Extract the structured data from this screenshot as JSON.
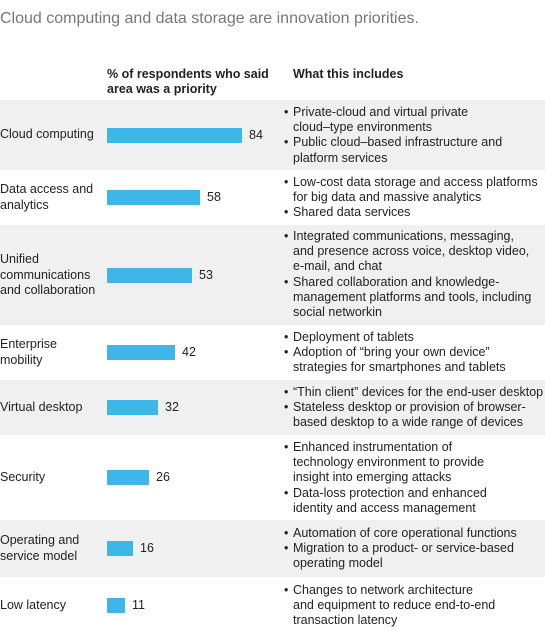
{
  "title": "Cloud computing and data storage are innovation priorities.",
  "headers": {
    "value": "% of respondents who said area was a priority",
    "includes": "What this includes"
  },
  "chart_data": {
    "type": "bar",
    "title": "Cloud computing and data storage are innovation priorities.",
    "ylabel": "% of respondents who said area was a priority",
    "categories": [
      "Cloud computing",
      "Data access and analytics",
      "Unified communications and collaboration",
      "Enterprise mobility",
      "Virtual desktop",
      "Security",
      "Operating and service model",
      "Low latency"
    ],
    "values": [
      84,
      58,
      53,
      42,
      32,
      26,
      16,
      11
    ],
    "orientation": "horizontal",
    "bar_color": "#3fb6e8",
    "ylim": [
      0,
      100
    ],
    "grid": false
  },
  "rows": [
    {
      "category_lines": [
        "Cloud computing"
      ],
      "value": "84",
      "includes": [
        [
          "Private-cloud and virtual private",
          "cloud–type environments"
        ],
        [
          "Public cloud–based infrastructure and",
          "platform services"
        ]
      ]
    },
    {
      "category_lines": [
        "Data access and",
        "analytics"
      ],
      "value": "58",
      "includes": [
        [
          "Low-cost data storage and access platforms",
          "for big data and massive analytics"
        ],
        [
          "Shared data services"
        ]
      ]
    },
    {
      "category_lines": [
        "Unified",
        "communications",
        "and collaboration"
      ],
      "value": "53",
      "includes": [
        [
          "Integrated communications, messaging,",
          "and presence across voice, desktop video,",
          "e-mail, and chat"
        ],
        [
          "Shared collaboration and knowledge-",
          "management platforms and tools, including",
          " social networkin"
        ]
      ]
    },
    {
      "category_lines": [
        "Enterprise",
        "mobility"
      ],
      "value": "42",
      "includes": [
        [
          "Deployment of tablets"
        ],
        [
          "Adoption of “bring your own device”",
          "strategies for smartphones and tablets"
        ]
      ]
    },
    {
      "category_lines": [
        "Virtual desktop"
      ],
      "value": "32",
      "includes": [
        [
          "“Thin client” devices for the end-user desktop"
        ],
        [
          "Stateless desktop or provision of browser-",
          "based desktop to a wide range of devices"
        ]
      ]
    },
    {
      "category_lines": [
        "Security"
      ],
      "value": "26",
      "includes": [
        [
          "Enhanced instrumentation of",
          "technology environment to provide",
          "insight into emerging attacks"
        ],
        [
          "Data-loss protection and enhanced",
          "identity and access management"
        ]
      ]
    },
    {
      "category_lines": [
        "Operating and",
        "service model"
      ],
      "value": "16",
      "includes": [
        [
          "Automation of core operational functions"
        ],
        [
          "Migration to a product- or service-based",
          "operating model"
        ]
      ]
    },
    {
      "category_lines": [
        "Low latency"
      ],
      "value": "11",
      "includes": [
        [
          "Changes to network architecture",
          "and equipment to reduce end-to-end",
          "transaction latency"
        ]
      ]
    }
  ]
}
